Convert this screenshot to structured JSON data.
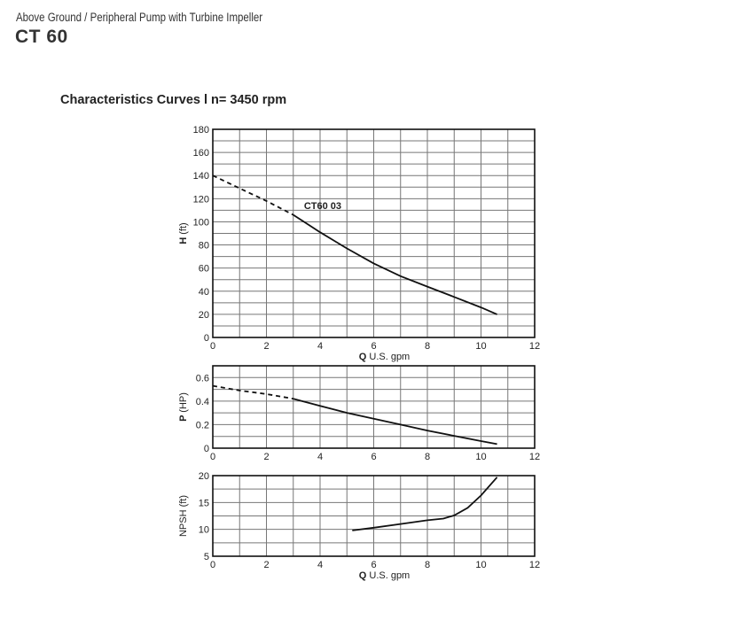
{
  "header": {
    "subtitle": "Above Ground / Peripheral Pump with Turbine Impeller",
    "title": "CT 60"
  },
  "section_title": "Characteristics Curves l  n= 3450 rpm",
  "chart_data": [
    {
      "type": "line",
      "ylabel_symbol": "H",
      "ylabel_unit": "(ft)",
      "xlabel_symbol": "Q",
      "xlabel_unit": "U.S. gpm",
      "xlim": [
        0,
        12
      ],
      "ylim": [
        0,
        180
      ],
      "xticks": [
        0,
        2,
        4,
        6,
        8,
        10,
        12
      ],
      "yticks": [
        0,
        20,
        40,
        60,
        80,
        100,
        120,
        140,
        160,
        180
      ],
      "x_grid_step": 1,
      "y_grid_step": 10,
      "grid": true,
      "annotation": "CT60 03",
      "series": [
        {
          "style": "dashed",
          "x": [
            0,
            1,
            2,
            3
          ],
          "y": [
            140,
            129,
            118,
            106
          ]
        },
        {
          "style": "solid",
          "x": [
            3,
            4,
            5,
            6,
            7,
            8,
            9,
            10,
            10.6
          ],
          "y": [
            106,
            91,
            77,
            64,
            53,
            44,
            35,
            26,
            20
          ]
        }
      ]
    },
    {
      "type": "line",
      "ylabel_symbol": "P",
      "ylabel_unit": "(HP)",
      "xlim": [
        0,
        12
      ],
      "ylim": [
        0,
        0.7
      ],
      "xticks": [
        0,
        2,
        4,
        6,
        8,
        10,
        12
      ],
      "yticks": [
        0,
        0.2,
        0.4,
        0.6
      ],
      "x_grid_step": 1,
      "y_grid_step": 0.1,
      "grid": true,
      "series": [
        {
          "style": "dashed",
          "x": [
            0,
            1,
            2,
            3
          ],
          "y": [
            0.53,
            0.49,
            0.46,
            0.42
          ]
        },
        {
          "style": "solid",
          "x": [
            3,
            4,
            5,
            6,
            7,
            8,
            9,
            10,
            10.6
          ],
          "y": [
            0.42,
            0.36,
            0.3,
            0.25,
            0.2,
            0.15,
            0.105,
            0.06,
            0.035
          ]
        }
      ]
    },
    {
      "type": "line",
      "ylabel_symbol": "",
      "ylabel_unit": "NPSH (ft)",
      "xlabel_symbol": "Q",
      "xlabel_unit": "U.S. gpm",
      "xlim": [
        0,
        12
      ],
      "ylim": [
        5,
        20
      ],
      "xticks": [
        0,
        2,
        4,
        6,
        8,
        10,
        12
      ],
      "yticks": [
        5,
        10,
        15,
        20
      ],
      "x_grid_step": 1,
      "y_grid_step": 2.5,
      "grid": true,
      "series": [
        {
          "style": "solid",
          "x": [
            5.2,
            6,
            7,
            8,
            8.6,
            9,
            9.5,
            10,
            10.6
          ],
          "y": [
            9.8,
            10.3,
            11,
            11.7,
            12.0,
            12.6,
            14,
            16.3,
            19.7
          ]
        }
      ]
    }
  ]
}
